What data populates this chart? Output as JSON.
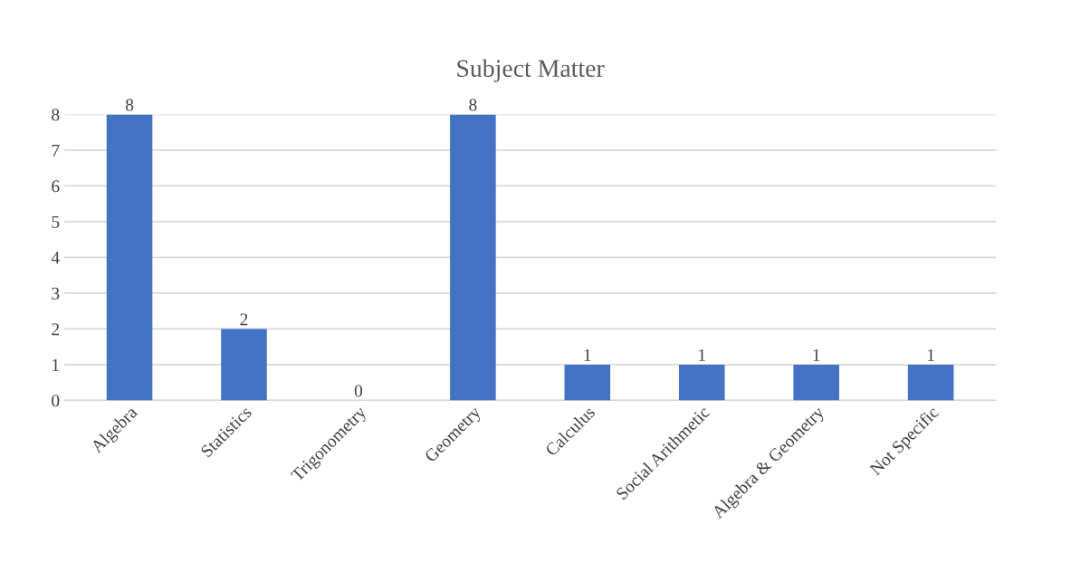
{
  "chart_data": {
    "type": "bar",
    "title": "Subject Matter",
    "categories": [
      "Algebra",
      "Statistics",
      "Trigonometry",
      "Geometry",
      "Calculus",
      "Social Arithmetic",
      "Algebra & Geometry",
      "Not Specific"
    ],
    "values": [
      8,
      2,
      0,
      8,
      1,
      1,
      1,
      1
    ],
    "color": "#4472c4",
    "ylim": [
      0,
      8
    ],
    "yticks": [
      0,
      1,
      2,
      3,
      4,
      5,
      6,
      7,
      8
    ],
    "grid": "y",
    "data_labels": true
  }
}
